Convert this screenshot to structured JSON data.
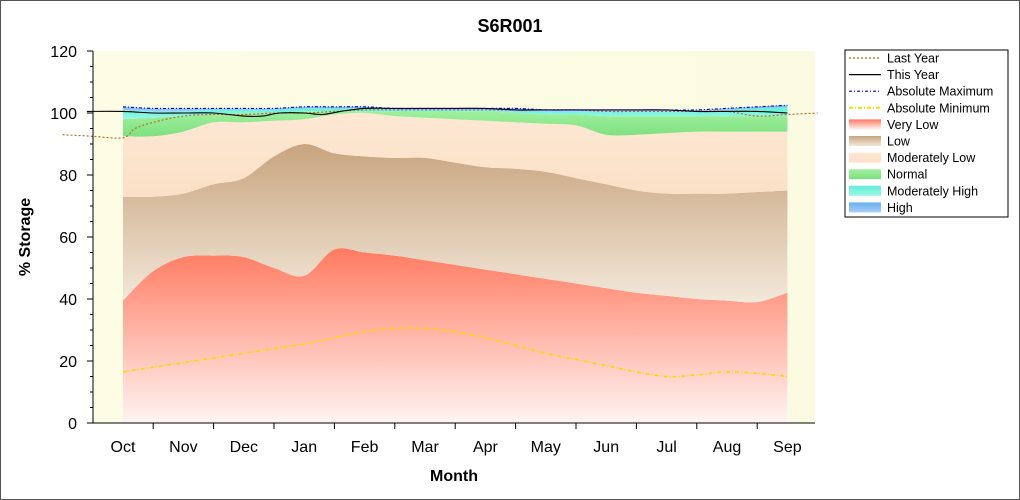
{
  "chart_data": {
    "type": "area",
    "title": "S6R001",
    "xlabel": "Month",
    "ylabel": "% Storage",
    "ylim": [
      0,
      120
    ],
    "yticks": [
      0,
      20,
      40,
      60,
      80,
      100,
      120
    ],
    "categories": [
      "Oct",
      "Nov",
      "Dec",
      "Jan",
      "Feb",
      "Mar",
      "Apr",
      "May",
      "Jun",
      "Jul",
      "Aug",
      "Sep"
    ],
    "legend_position": "top-right",
    "bands_x": [
      0,
      0.5,
      1,
      1.5,
      2,
      2.5,
      3,
      3.5,
      4,
      4.5,
      5,
      5.5,
      6,
      6.5,
      7,
      7.5,
      8,
      8.5,
      9,
      9.5,
      10,
      10.5,
      11
    ],
    "bands": [
      {
        "name": "Very Low",
        "color": "#ff8a70",
        "lower": [
          0,
          0,
          0,
          0,
          0,
          0,
          0,
          0,
          0,
          0,
          0,
          0,
          0,
          0,
          0,
          0,
          0,
          0,
          0,
          0,
          0,
          0,
          0
        ],
        "upper": [
          39.5,
          49,
          53.5,
          54,
          53.5,
          50,
          47.5,
          56,
          55,
          54,
          52.5,
          51,
          49.5,
          48,
          46.5,
          45,
          43.5,
          42,
          41,
          40,
          39.5,
          39,
          42
        ]
      },
      {
        "name": "Low",
        "color": "#d4b896",
        "lower": [
          39.5,
          49,
          53.5,
          54,
          53.5,
          50,
          47.5,
          56,
          55,
          54,
          52.5,
          51,
          49.5,
          48,
          46.5,
          45,
          43.5,
          42,
          41,
          40,
          39.5,
          39,
          42
        ],
        "upper": [
          73,
          73,
          74,
          77,
          79,
          86,
          90,
          87,
          86,
          85.5,
          85.5,
          84,
          82.5,
          82,
          81,
          79,
          77,
          75,
          74,
          74,
          74,
          74.5,
          75
        ]
      },
      {
        "name": "Moderately Low",
        "color": "#fde3c9",
        "lower": [
          73,
          73,
          74,
          77,
          79,
          86,
          90,
          87,
          86,
          85.5,
          85.5,
          84,
          82.5,
          82,
          81,
          79,
          77,
          75,
          74,
          74,
          74,
          74.5,
          75
        ],
        "upper": [
          92.5,
          92.5,
          94,
          97,
          97,
          97.5,
          98,
          99.5,
          100,
          99,
          98.5,
          98,
          97.5,
          97,
          96.5,
          96,
          93,
          93,
          93.5,
          94,
          94,
          94,
          94
        ]
      },
      {
        "name": "Normal",
        "color": "#8ee88e",
        "lower": [
          92.5,
          92.5,
          94,
          97,
          97,
          97.5,
          98,
          99.5,
          100,
          99,
          98.5,
          98,
          97.5,
          97,
          96.5,
          96,
          93,
          93,
          93.5,
          94,
          94,
          94,
          94
        ],
        "upper": [
          98,
          98.5,
          99,
          99.5,
          100,
          100,
          100.5,
          100.5,
          100.5,
          100.5,
          100.5,
          100.5,
          100.5,
          100,
          99.5,
          99.5,
          99,
          99,
          99,
          99,
          99,
          99,
          99
        ]
      },
      {
        "name": "Moderately High",
        "color": "#6ff0d8",
        "lower": [
          98,
          98.5,
          99,
          99.5,
          100,
          100,
          100.5,
          100.5,
          100.5,
          100.5,
          100.5,
          100.5,
          100.5,
          100,
          99.5,
          99.5,
          99,
          99,
          99,
          99,
          99,
          99,
          99
        ],
        "upper": [
          101,
          100.5,
          100.5,
          101,
          101,
          101,
          101.5,
          101.5,
          101.5,
          101,
          101,
          101,
          101,
          100.5,
          100.5,
          100.5,
          100.5,
          100.5,
          100.5,
          100.5,
          101,
          101.5,
          102
        ]
      },
      {
        "name": "High",
        "color": "#7ab8f5",
        "lower": [
          101,
          100.5,
          100.5,
          101,
          101,
          101,
          101.5,
          101.5,
          101.5,
          101,
          101,
          101,
          101,
          100.5,
          100.5,
          100.5,
          100.5,
          100.5,
          100.5,
          100.5,
          101,
          101.5,
          102
        ],
        "upper": [
          102,
          101.5,
          101.5,
          101.5,
          101.5,
          101.5,
          102,
          102,
          102,
          101.5,
          101.5,
          101.5,
          101.5,
          101.5,
          101,
          101,
          101,
          101,
          101,
          101,
          101.5,
          102,
          102.5
        ]
      }
    ],
    "lines": [
      {
        "name": "Last Year",
        "color": "#b5651d",
        "dash": "2,2",
        "x": [
          -1,
          -0.5,
          0,
          0.2,
          0.5,
          1,
          1.5,
          2,
          2.5,
          3,
          3.5,
          4,
          4.5,
          5,
          5.5,
          6,
          6.5,
          7,
          7.5,
          8,
          8.5,
          9,
          9.5,
          10,
          10.5,
          11,
          11.5
        ],
        "y": [
          93,
          92.5,
          92,
          95,
          97,
          99,
          99.5,
          99.5,
          100,
          100,
          100.5,
          101,
          101,
          101,
          101,
          101,
          101,
          101,
          101,
          100.5,
          100.5,
          100.5,
          100.5,
          100.5,
          99,
          99.5,
          100
        ]
      },
      {
        "name": "This Year",
        "color": "#000000",
        "dash": "",
        "x": [
          -0.6,
          0,
          0.5,
          1,
          1.5,
          2,
          2.3,
          2.6,
          3,
          3.3,
          3.6,
          4,
          4.5,
          5,
          5.5,
          6,
          6.5,
          7,
          7.5,
          8,
          8.5,
          9,
          9.5,
          10,
          10.5,
          11
        ],
        "y": [
          100.5,
          100.5,
          100,
          100,
          100,
          99,
          99,
          100,
          100,
          99.5,
          100.5,
          101.5,
          101.5,
          101.5,
          101.5,
          101.5,
          101,
          101,
          101,
          101,
          101,
          101,
          100.5,
          100.5,
          100.5,
          100
        ]
      },
      {
        "name": "Absolute Maximum",
        "color": "#0000cc",
        "dash": "3,2,1,2",
        "x": [
          0,
          0.5,
          1,
          1.5,
          2,
          2.5,
          3,
          3.5,
          4,
          4.5,
          5,
          5.5,
          6,
          6.5,
          7,
          7.5,
          8,
          8.5,
          9,
          9.5,
          10,
          10.5,
          11
        ],
        "y": [
          102,
          101.5,
          101.5,
          101.5,
          101.5,
          101.5,
          102,
          102,
          102,
          101.5,
          101.5,
          101.5,
          101.5,
          101.5,
          101,
          101,
          101,
          101,
          101,
          101,
          101.5,
          102,
          102.5
        ]
      },
      {
        "name": "Absolute Minimum",
        "color": "#ffd700",
        "dash": "4,2,1,2",
        "x": [
          0,
          0.5,
          1,
          1.5,
          2,
          2.5,
          3,
          3.5,
          4,
          4.5,
          5,
          5.5,
          6,
          6.5,
          7,
          7.5,
          8,
          8.5,
          9,
          9.5,
          10,
          10.5,
          11
        ],
        "y": [
          16.5,
          18,
          19.5,
          21,
          22.5,
          24,
          25.5,
          27.5,
          29.5,
          30.5,
          30.5,
          29.5,
          27.5,
          25,
          22.5,
          20.5,
          18.5,
          16.5,
          15,
          15.5,
          16.5,
          16,
          15
        ]
      }
    ],
    "legend": [
      "Last Year",
      "This Year",
      "Absolute Maximum",
      "Absolute Minimum",
      "Very Low",
      "Low",
      "Moderately Low",
      "Normal",
      "Moderately High",
      "High"
    ]
  }
}
